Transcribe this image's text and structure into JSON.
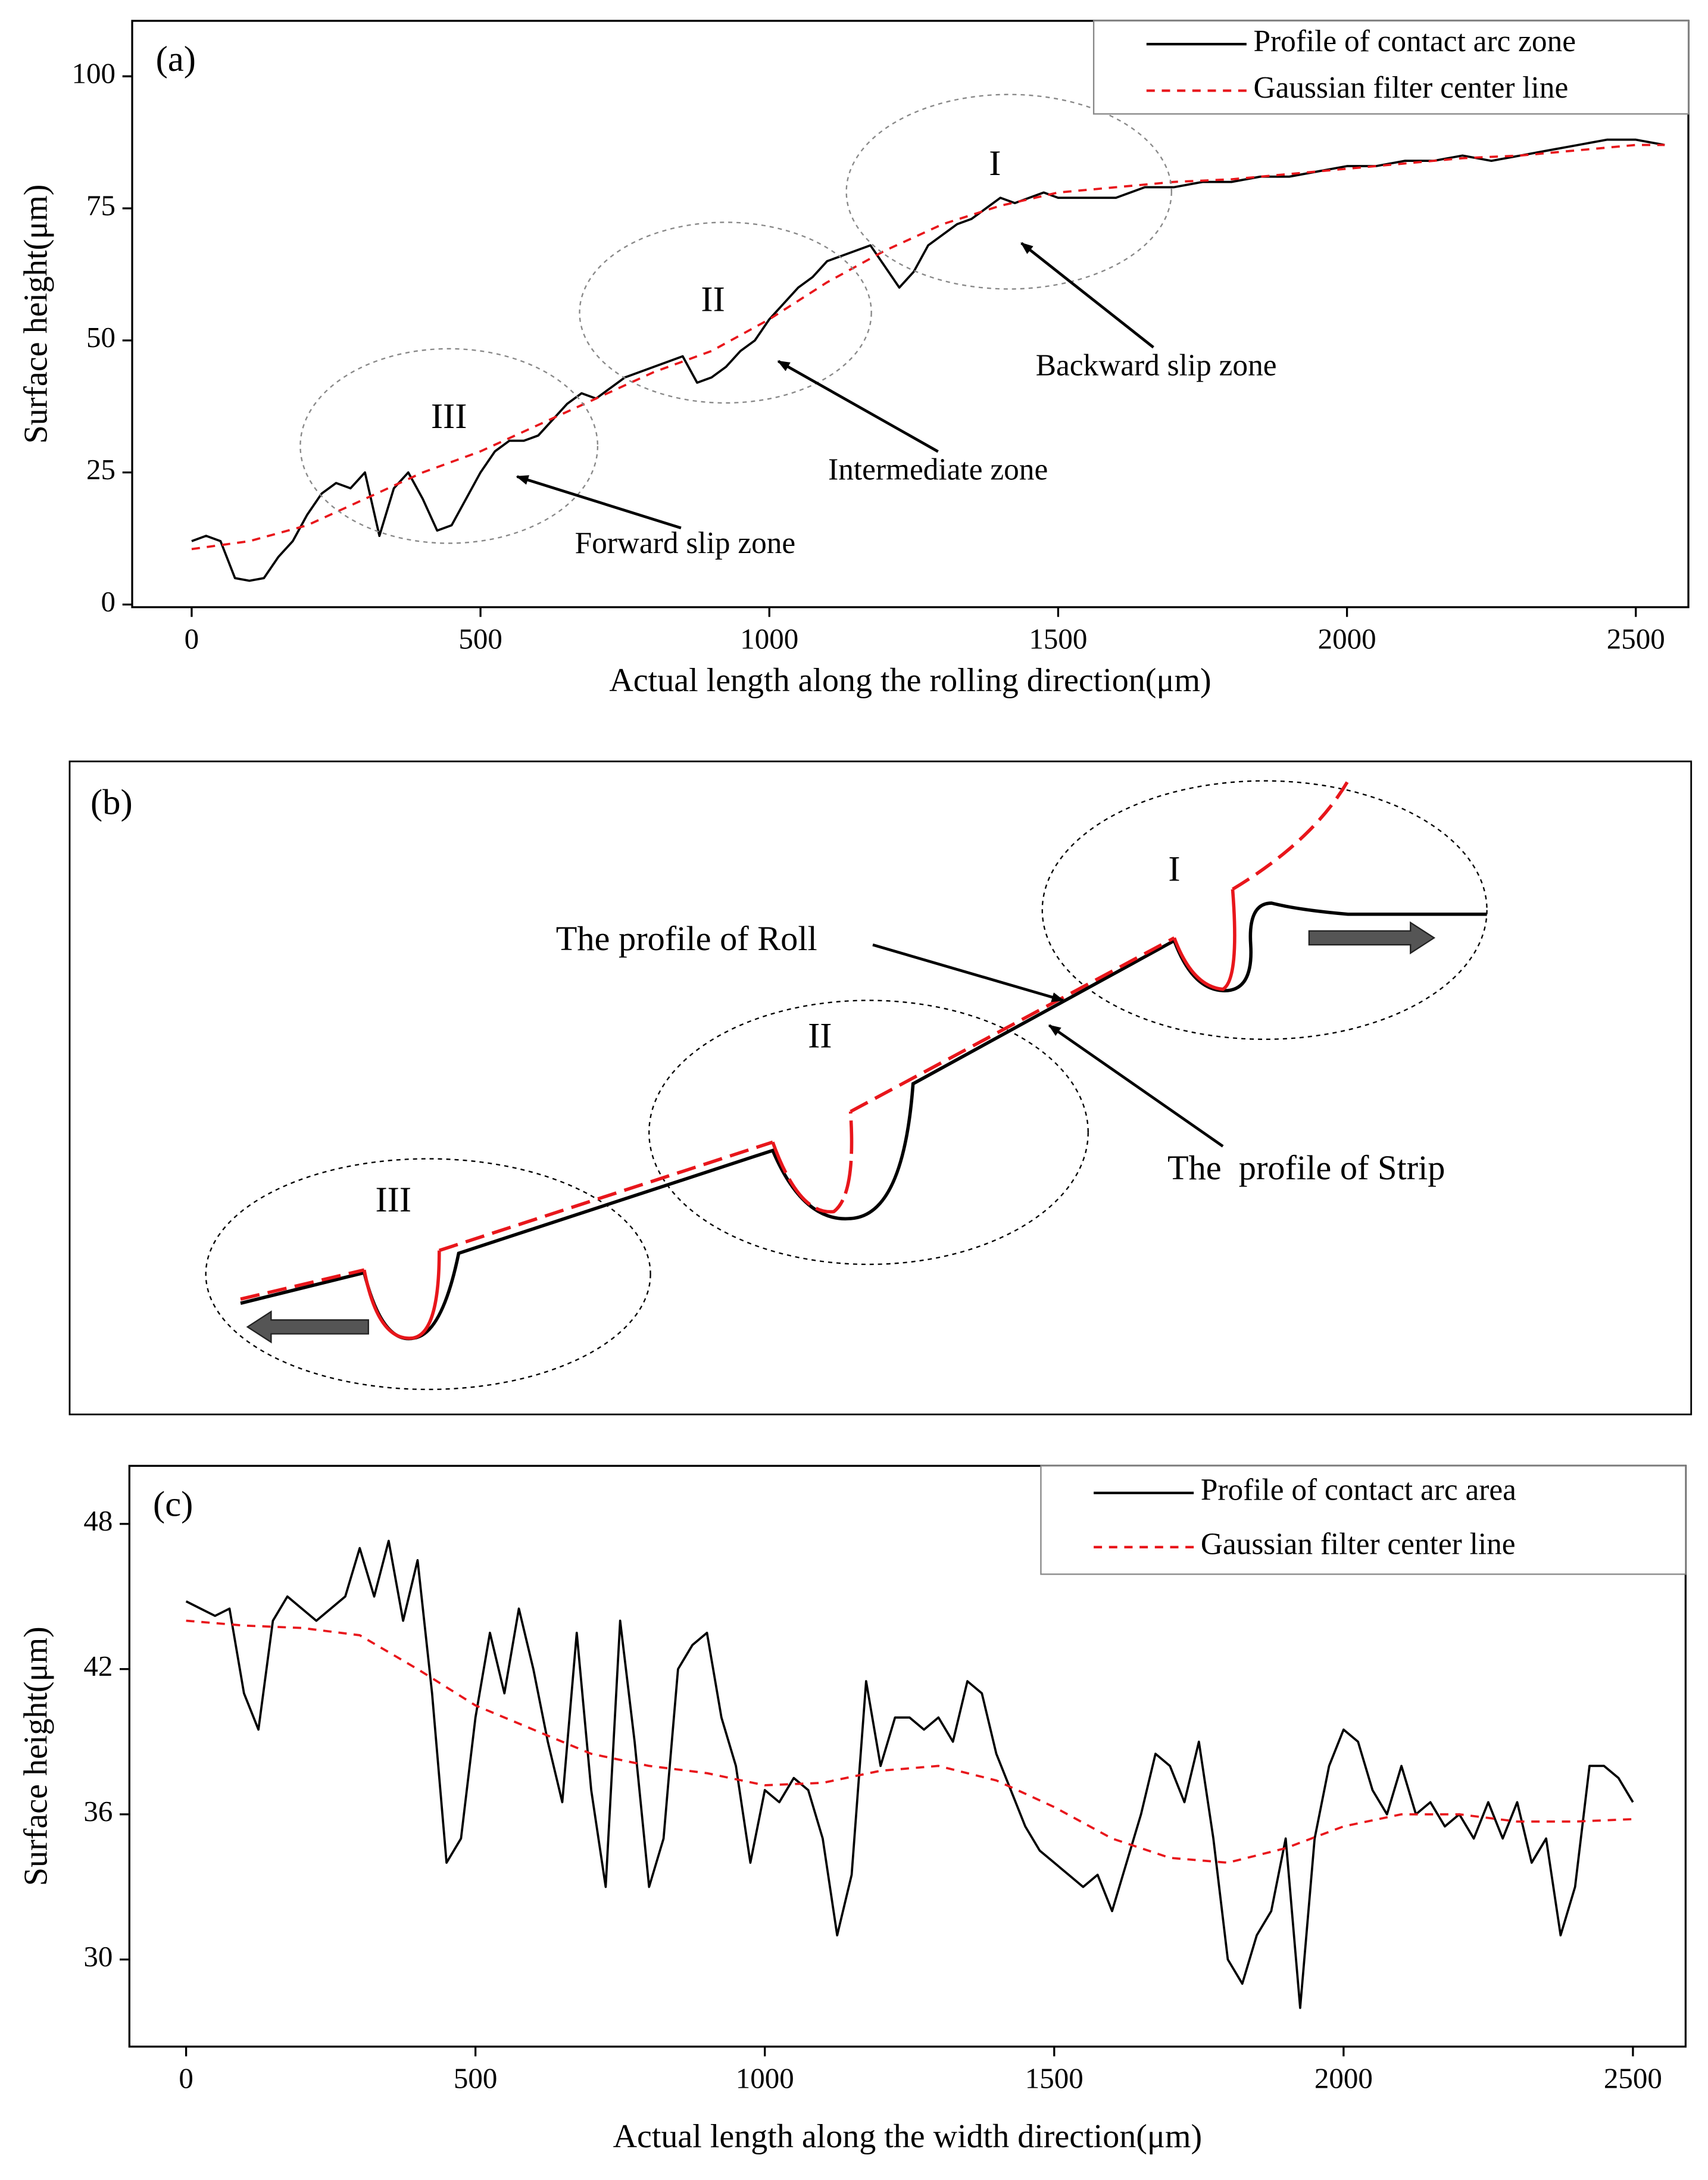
{
  "chart_data": [
    {
      "type": "line",
      "panel_label": "(a)",
      "xlabel": "Actual length along the rolling direction(μm)",
      "ylabel": "Surface height(μm)",
      "xlim": [
        -103,
        2591
      ],
      "ylim": [
        -0.5,
        110.5
      ],
      "xticks": [
        0,
        500,
        1000,
        1500,
        2000,
        2500
      ],
      "yticks": [
        0,
        25,
        50,
        75,
        100
      ],
      "legend": "upper right",
      "annotations": [
        "I",
        "II",
        "III",
        "Backward slip zone",
        "Intermediate zone",
        "Forward slip zone"
      ],
      "series": [
        {
          "name": "Profile of contact arc zone",
          "color": "#000000",
          "style": "solid",
          "x": [
            0,
            25,
            50,
            75,
            100,
            125,
            150,
            175,
            200,
            225,
            250,
            275,
            300,
            325,
            350,
            375,
            400,
            425,
            450,
            475,
            500,
            525,
            550,
            575,
            600,
            625,
            650,
            675,
            700,
            725,
            750,
            775,
            800,
            825,
            850,
            875,
            900,
            925,
            950,
            975,
            1000,
            1025,
            1050,
            1075,
            1100,
            1125,
            1150,
            1175,
            1200,
            1225,
            1250,
            1275,
            1300,
            1325,
            1350,
            1375,
            1400,
            1425,
            1450,
            1475,
            1500,
            1550,
            1600,
            1650,
            1700,
            1750,
            1800,
            1850,
            1900,
            1950,
            2000,
            2050,
            2100,
            2150,
            2200,
            2250,
            2300,
            2350,
            2400,
            2450,
            2500,
            2550
          ],
          "values": [
            12,
            13,
            12,
            5,
            4.5,
            5,
            9,
            12,
            17,
            21,
            23,
            22,
            25,
            13,
            22,
            25,
            20,
            14,
            15,
            20,
            25,
            29,
            31,
            31,
            32,
            35,
            38,
            40,
            39,
            41,
            43,
            44,
            45,
            46,
            47,
            42,
            43,
            45,
            48,
            50,
            54,
            57,
            60,
            62,
            65,
            66,
            67,
            68,
            64,
            60,
            63,
            68,
            70,
            72,
            73,
            75,
            77,
            76,
            77,
            78,
            77,
            77,
            77,
            79,
            79,
            80,
            80,
            81,
            81,
            82,
            83,
            83,
            84,
            84,
            85,
            84,
            85,
            86,
            87,
            88,
            88,
            87
          ]
        },
        {
          "name": "Gaussian filter center line",
          "color": "#e8161b",
          "style": "dashed",
          "x": [
            0,
            100,
            200,
            300,
            400,
            500,
            600,
            700,
            800,
            900,
            1000,
            1100,
            1200,
            1300,
            1400,
            1500,
            1600,
            1700,
            1800,
            1900,
            2000,
            2100,
            2200,
            2300,
            2400,
            2500,
            2550
          ],
          "values": [
            10.5,
            12,
            15,
            20,
            25,
            29,
            34,
            39,
            44,
            48,
            54,
            61,
            67,
            72,
            75.5,
            78,
            79,
            80,
            80.5,
            81.5,
            82.5,
            83.5,
            84.5,
            85,
            86,
            87,
            87
          ]
        }
      ]
    },
    {
      "type": "line",
      "panel_label": "(c)",
      "xlabel": "Actual length along the width direction(μm)",
      "ylabel": "Surface height(μm)",
      "xlim": [
        -98,
        2591
      ],
      "ylim": [
        26.4,
        50.4
      ],
      "xticks": [
        0,
        500,
        1000,
        1500,
        2000,
        2500
      ],
      "yticks": [
        30,
        36,
        42,
        48
      ],
      "legend": "upper right",
      "series": [
        {
          "name": "Profile of contact arc area",
          "color": "#000000",
          "style": "solid",
          "x": [
            0,
            25,
            50,
            75,
            100,
            125,
            150,
            175,
            200,
            225,
            250,
            275,
            300,
            325,
            350,
            375,
            400,
            425,
            450,
            475,
            500,
            525,
            550,
            575,
            600,
            625,
            650,
            675,
            700,
            725,
            750,
            775,
            800,
            825,
            850,
            875,
            900,
            925,
            950,
            975,
            1000,
            1025,
            1050,
            1075,
            1100,
            1125,
            1150,
            1175,
            1200,
            1225,
            1250,
            1275,
            1300,
            1325,
            1350,
            1375,
            1400,
            1425,
            1450,
            1475,
            1500,
            1525,
            1550,
            1575,
            1600,
            1625,
            1650,
            1675,
            1700,
            1725,
            1750,
            1775,
            1800,
            1825,
            1850,
            1875,
            1900,
            1925,
            1950,
            1975,
            2000,
            2025,
            2050,
            2075,
            2100,
            2125,
            2150,
            2175,
            2200,
            2225,
            2250,
            2275,
            2300,
            2325,
            2350,
            2375,
            2400,
            2425,
            2450,
            2475,
            2500
          ],
          "values": [
            44.8,
            44.5,
            44.2,
            44.5,
            41,
            39.5,
            44,
            45,
            44.5,
            44,
            44.5,
            45,
            47,
            45,
            47.3,
            44,
            46.5,
            41,
            34,
            35,
            40,
            43.5,
            41,
            44.5,
            42,
            39,
            36.5,
            43.5,
            37,
            33,
            44,
            39,
            33,
            35,
            42,
            43,
            43.5,
            40,
            38,
            34,
            37,
            36.5,
            37.5,
            37,
            35,
            31,
            33.5,
            41.5,
            38,
            40,
            40,
            39.5,
            40,
            39,
            41.5,
            41,
            38.5,
            37,
            35.5,
            34.5,
            34,
            33.5,
            33,
            33.5,
            32,
            34,
            36,
            38.5,
            38,
            36.5,
            39,
            35,
            30,
            29,
            31,
            32,
            35,
            28,
            35,
            38,
            39.5,
            39,
            37,
            36,
            38,
            36,
            36.5,
            35.5,
            36,
            35,
            36.5,
            35,
            36.5,
            34,
            35,
            31,
            33,
            38,
            38,
            37.5,
            36.5
          ]
        },
        {
          "name": "Gaussian filter center line",
          "color": "#e8161b",
          "style": "dashed",
          "x": [
            0,
            100,
            200,
            300,
            400,
            500,
            600,
            700,
            800,
            900,
            1000,
            1100,
            1200,
            1300,
            1400,
            1500,
            1600,
            1700,
            1800,
            1900,
            2000,
            2100,
            2200,
            2300,
            2400,
            2500
          ],
          "values": [
            44,
            43.8,
            43.7,
            43.4,
            42,
            40.5,
            39.5,
            38.5,
            38,
            37.7,
            37.2,
            37.3,
            37.8,
            38,
            37.4,
            36.3,
            35,
            34.2,
            34,
            34.6,
            35.5,
            36,
            36,
            35.7,
            35.7,
            35.8
          ]
        }
      ]
    }
  ],
  "diagram": {
    "panel_label": "(b)",
    "zones": [
      "I",
      "II",
      "III"
    ],
    "annotations": [
      "The profile of Roll",
      "The  profile of Strip"
    ]
  }
}
